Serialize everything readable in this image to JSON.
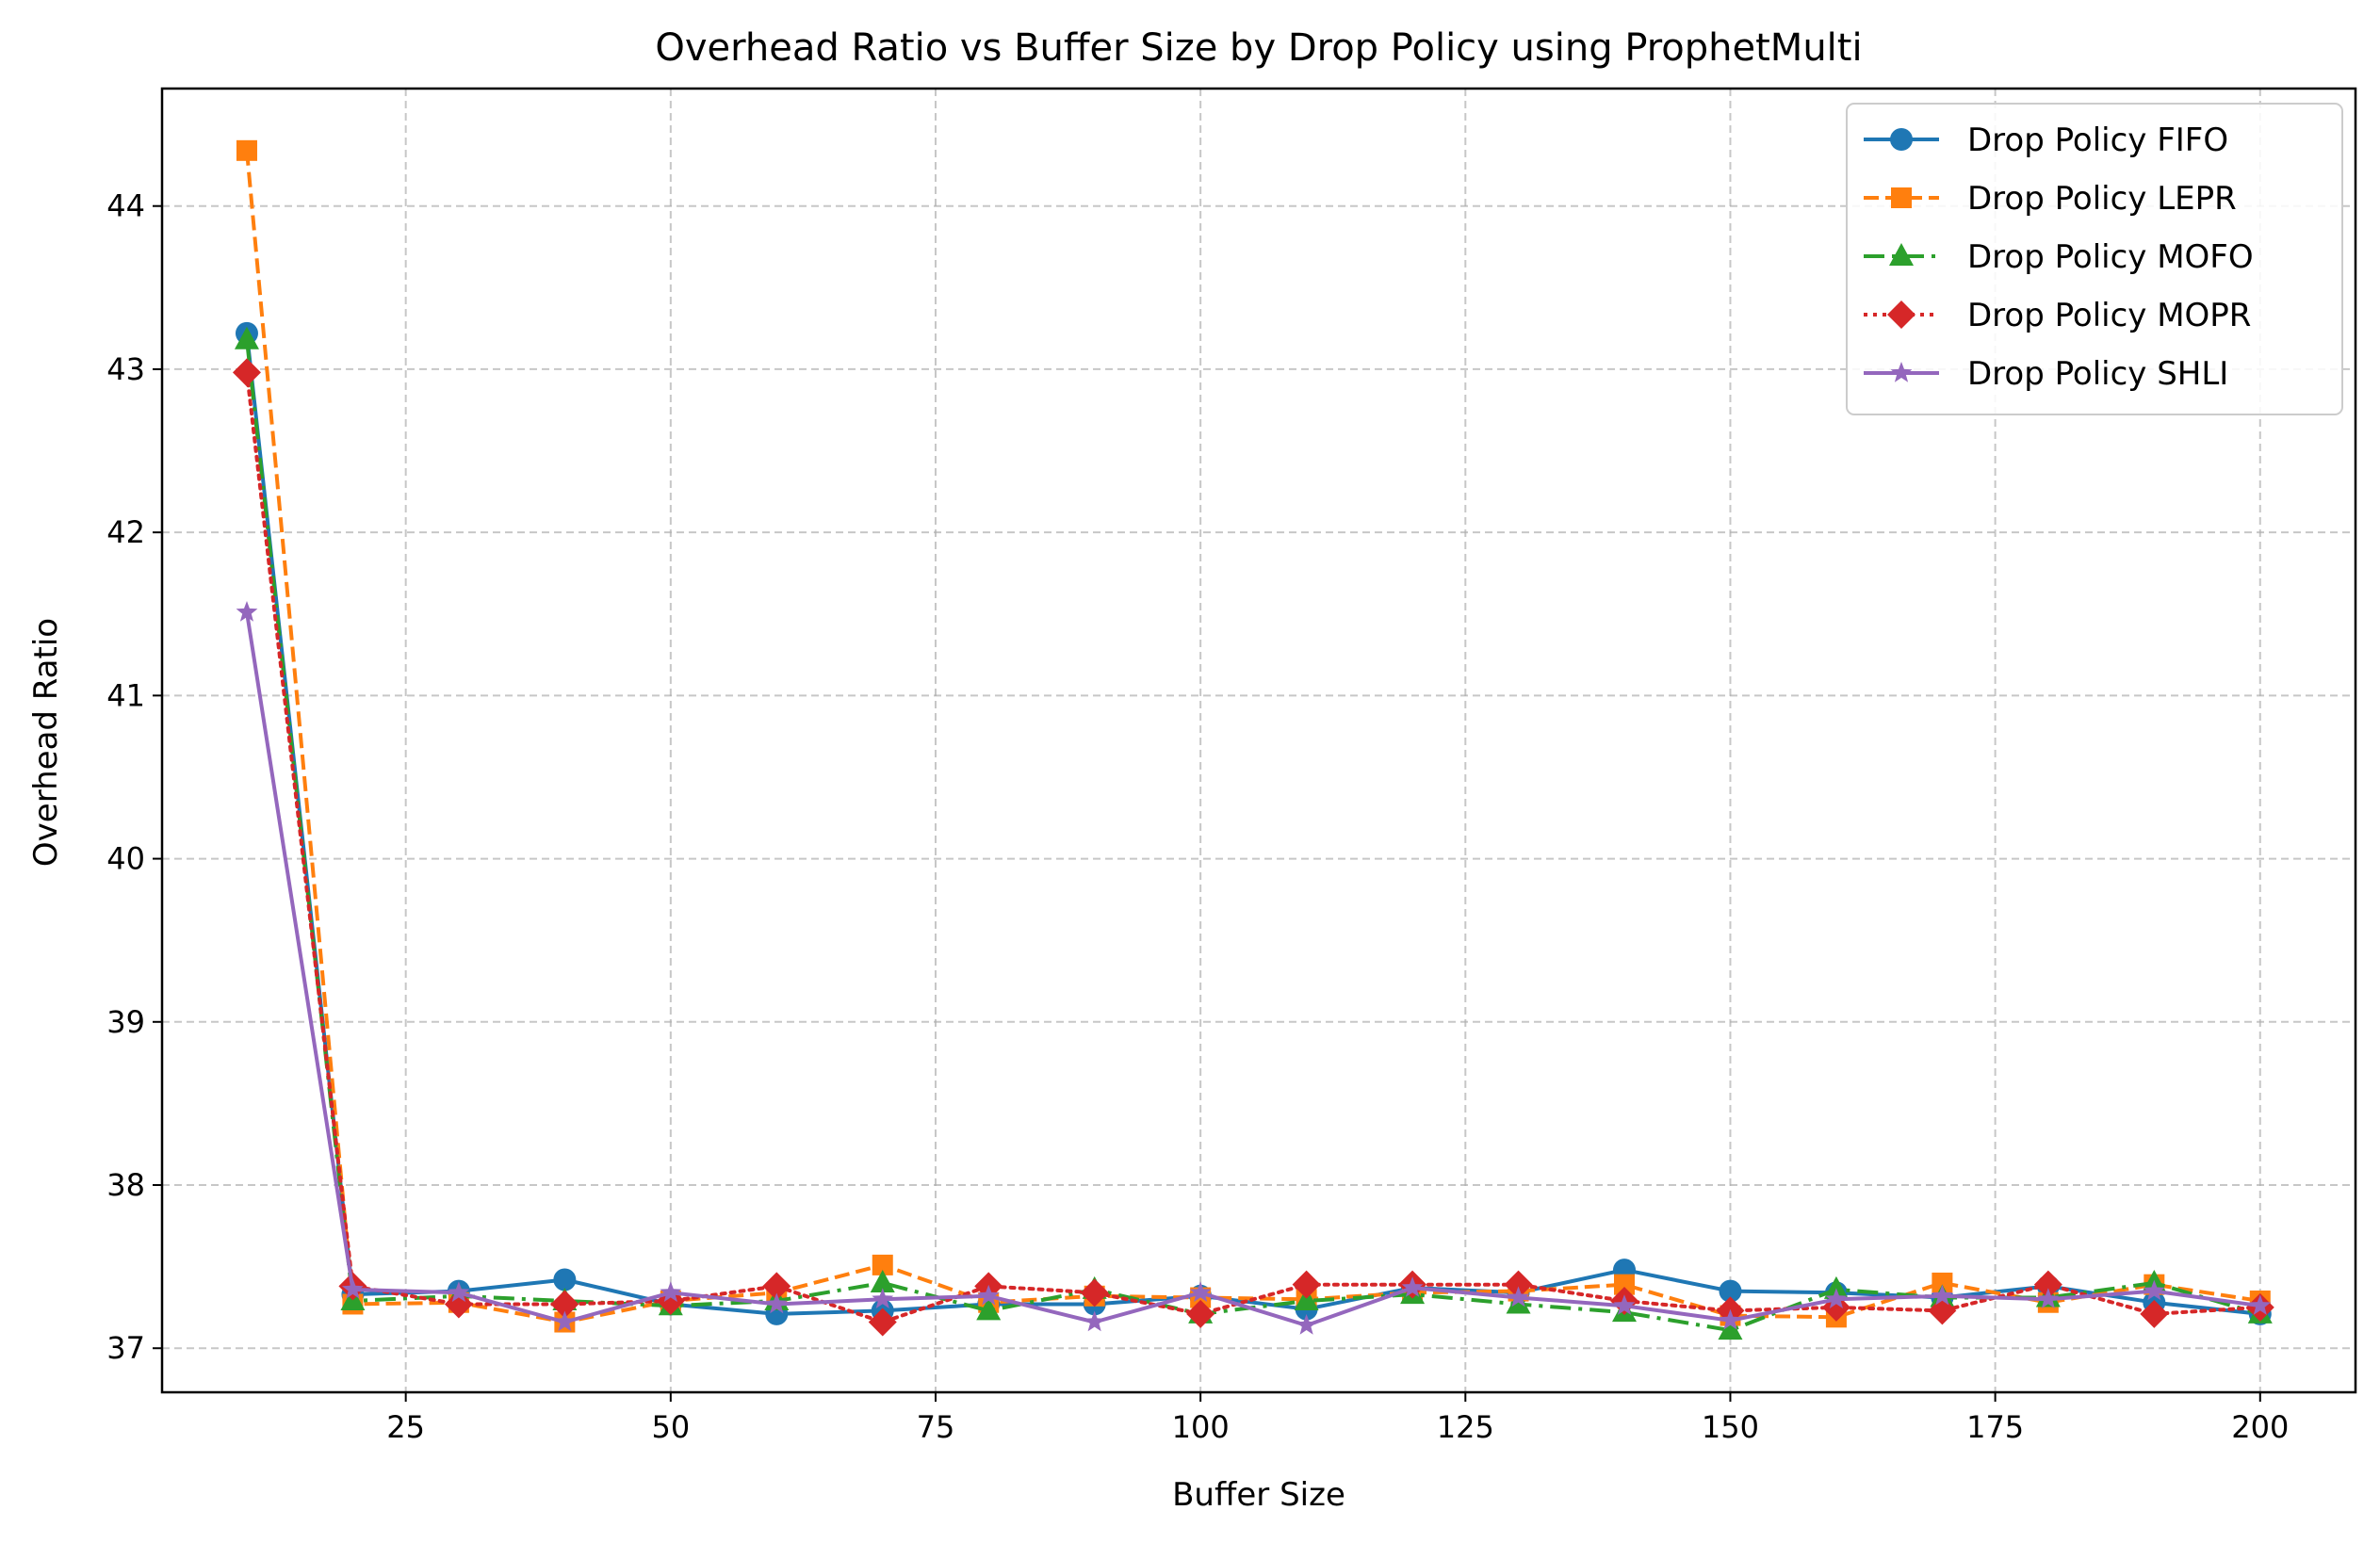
{
  "chart_data": {
    "type": "line",
    "title": "Overhead Ratio vs Buffer Size by Drop Policy using ProphetMulti",
    "xlabel": "Buffer Size",
    "ylabel": "Overhead Ratio",
    "xlim": [
      2,
      209
    ],
    "ylim": [
      36.73,
      44.72
    ],
    "xticks": [
      25,
      50,
      75,
      100,
      125,
      150,
      175,
      200
    ],
    "yticks": [
      37,
      38,
      39,
      40,
      41,
      42,
      43,
      44
    ],
    "grid": true,
    "legend_position": "top-right",
    "x": [
      10,
      20,
      30,
      40,
      50,
      60,
      70,
      80,
      90,
      100,
      110,
      120,
      130,
      140,
      150,
      160,
      170,
      180,
      190,
      200
    ],
    "series": [
      {
        "name": "Drop Policy FIFO",
        "color": "#1f77b4",
        "marker": "circle",
        "linestyle": "solid",
        "values": [
          43.22,
          37.33,
          37.35,
          37.42,
          37.27,
          37.21,
          37.23,
          37.27,
          37.27,
          37.32,
          37.24,
          37.37,
          37.34,
          37.48,
          37.35,
          37.34,
          37.31,
          37.38,
          37.28,
          37.21
        ]
      },
      {
        "name": "Drop Policy LEPR",
        "color": "#ff7f0e",
        "marker": "square",
        "linestyle": "dashed",
        "values": [
          44.34,
          37.27,
          37.28,
          37.16,
          37.29,
          37.34,
          37.51,
          37.28,
          37.32,
          37.31,
          37.3,
          37.34,
          37.35,
          37.39,
          37.2,
          37.19,
          37.4,
          37.28,
          37.39,
          37.29
        ]
      },
      {
        "name": "Drop Policy MOFO",
        "color": "#2ca02c",
        "marker": "triangle",
        "linestyle": "dashdot",
        "values": [
          43.18,
          37.29,
          37.32,
          37.29,
          37.26,
          37.29,
          37.4,
          37.23,
          37.36,
          37.21,
          37.29,
          37.33,
          37.27,
          37.22,
          37.11,
          37.36,
          37.31,
          37.31,
          37.4,
          37.21
        ]
      },
      {
        "name": "Drop Policy MOPR",
        "color": "#d62728",
        "marker": "diamond",
        "linestyle": "dotted",
        "values": [
          42.98,
          37.38,
          37.27,
          37.27,
          37.29,
          37.38,
          37.16,
          37.38,
          37.34,
          37.21,
          37.39,
          37.39,
          37.39,
          37.29,
          37.23,
          37.25,
          37.23,
          37.39,
          37.21,
          37.25
        ]
      },
      {
        "name": "Drop Policy SHLI",
        "color": "#9467bd",
        "marker": "star",
        "linestyle": "solid",
        "values": [
          41.51,
          37.36,
          37.34,
          37.16,
          37.34,
          37.27,
          37.3,
          37.32,
          37.16,
          37.34,
          37.14,
          37.37,
          37.31,
          37.26,
          37.17,
          37.3,
          37.32,
          37.3,
          37.35,
          37.26
        ]
      }
    ]
  }
}
